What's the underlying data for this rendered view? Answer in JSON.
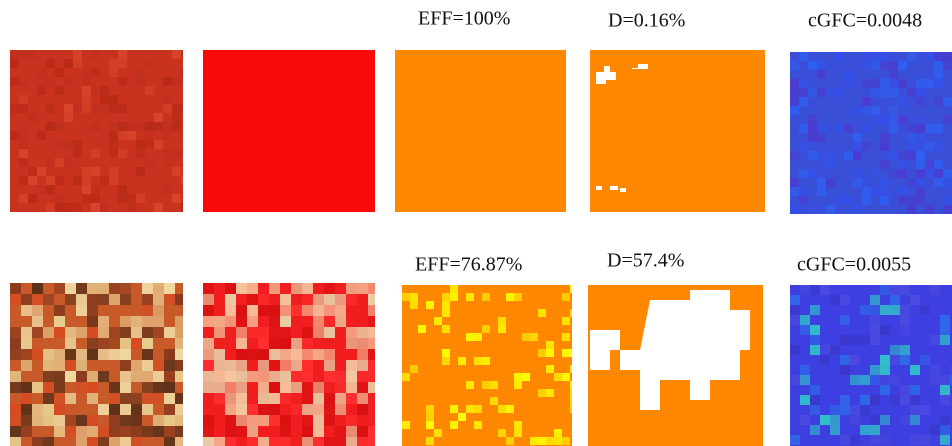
{
  "rows": [
    {
      "labels": [
        "EFF=100%",
        "D=0.16%",
        "cGFC=0.0048"
      ]
    },
    {
      "labels": [
        "EFF=76.87%",
        "D=57.4%",
        "cGFC=0.0055"
      ]
    }
  ]
}
